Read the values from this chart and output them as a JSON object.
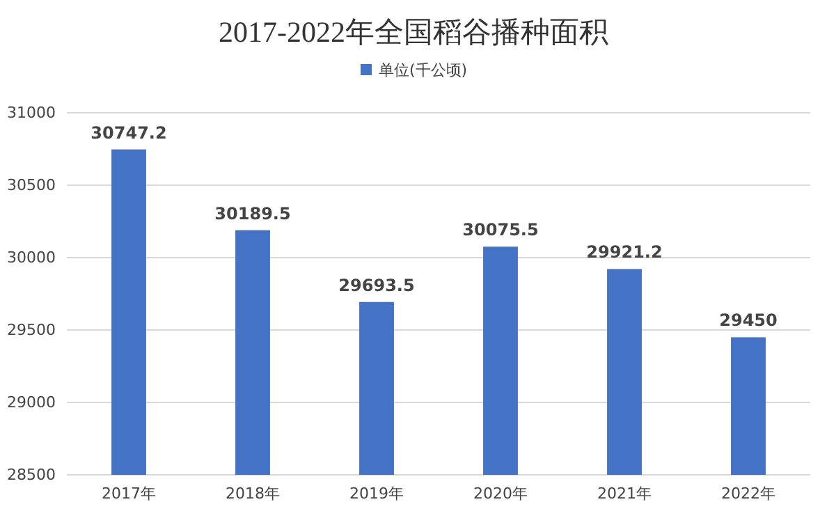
{
  "chart_data": {
    "type": "bar",
    "title": "2017-2022年全国稻谷播种面积",
    "categories": [
      "2017年",
      "2018年",
      "2019年",
      "2020年",
      "2021年",
      "2022年"
    ],
    "series": [
      {
        "name": "单位(千公顷)",
        "color": "#4472c4",
        "values": [
          30747.2,
          30189.5,
          29693.5,
          30075.5,
          29921.2,
          29450
        ]
      }
    ],
    "ylim": [
      28500,
      31000
    ],
    "yticks": [
      28500,
      29000,
      29500,
      30000,
      30500,
      31000
    ],
    "grid": "y",
    "legend": "top",
    "data_labels": true
  }
}
